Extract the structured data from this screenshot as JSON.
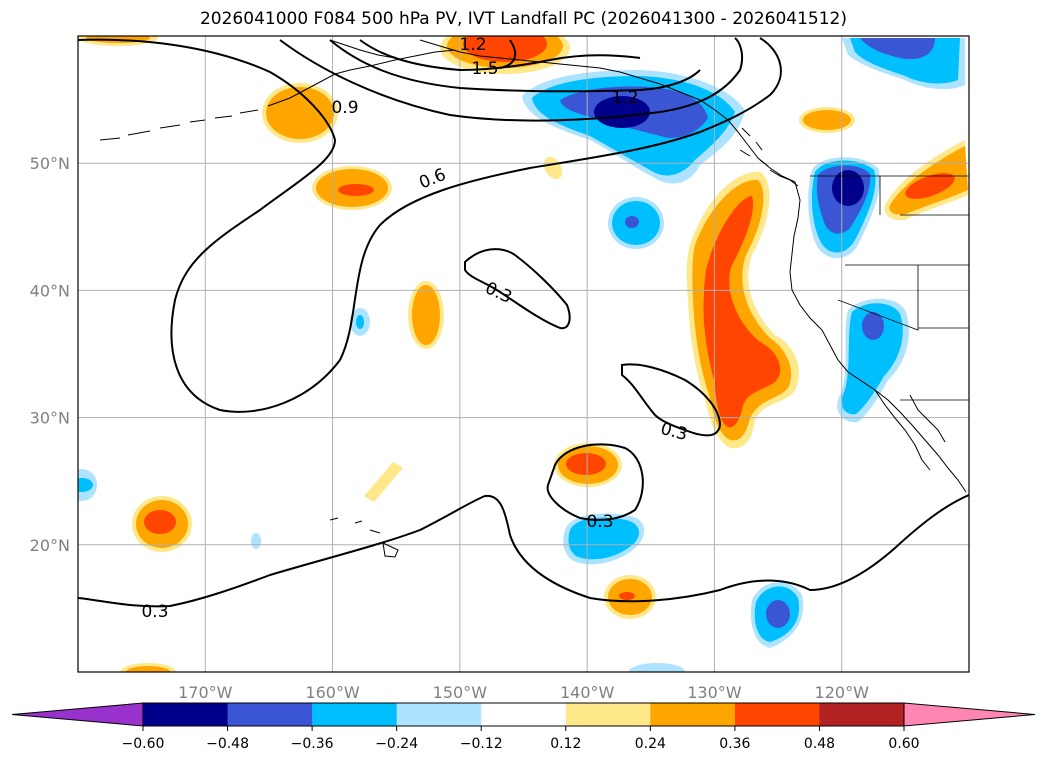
{
  "title": "2026041000 F084 500 hPa PV, IVT Landfall PC (2026041300 - 2026041512)",
  "axes": {
    "lat_ticks": [
      {
        "label": "50°N",
        "lat": 50
      },
      {
        "label": "40°N",
        "lat": 40
      },
      {
        "label": "30°N",
        "lat": 30
      },
      {
        "label": "20°N",
        "lat": 20
      }
    ],
    "lon_ticks": [
      {
        "label": "170°W",
        "lon": -170
      },
      {
        "label": "160°W",
        "lon": -160
      },
      {
        "label": "150°W",
        "lon": -150
      },
      {
        "label": "140°W",
        "lon": -140
      },
      {
        "label": "130°W",
        "lon": -130
      },
      {
        "label": "120°W",
        "lon": -120
      }
    ],
    "extent": {
      "lon_min": -180,
      "lon_max": -110,
      "lat_min": 10,
      "lat_max": 60
    }
  },
  "colorbar": {
    "tick_labels": [
      "−0.60",
      "−0.48",
      "−0.36",
      "−0.24",
      "−0.12",
      "0.12",
      "0.24",
      "0.36",
      "0.48",
      "0.60"
    ],
    "levels": [
      -0.6,
      -0.48,
      -0.36,
      -0.24,
      -0.12,
      0.12,
      0.24,
      0.36,
      0.48,
      0.6
    ],
    "colors": [
      "#9932cc",
      "#00008b",
      "#3a56d4",
      "#00bfff",
      "#aee3ff",
      "#ffffff",
      "#ffe88a",
      "#ffa500",
      "#ff4500",
      "#b22222",
      "#ff85b3"
    ],
    "extend": "both"
  },
  "contour_labels": [
    "1.2",
    "1.5",
    "1.2",
    "0.9",
    "0.6",
    "0.3",
    "0.3",
    "0.3",
    "0.3"
  ],
  "colors": {
    "grid": "#b0b0b0",
    "coast": "#000000"
  }
}
